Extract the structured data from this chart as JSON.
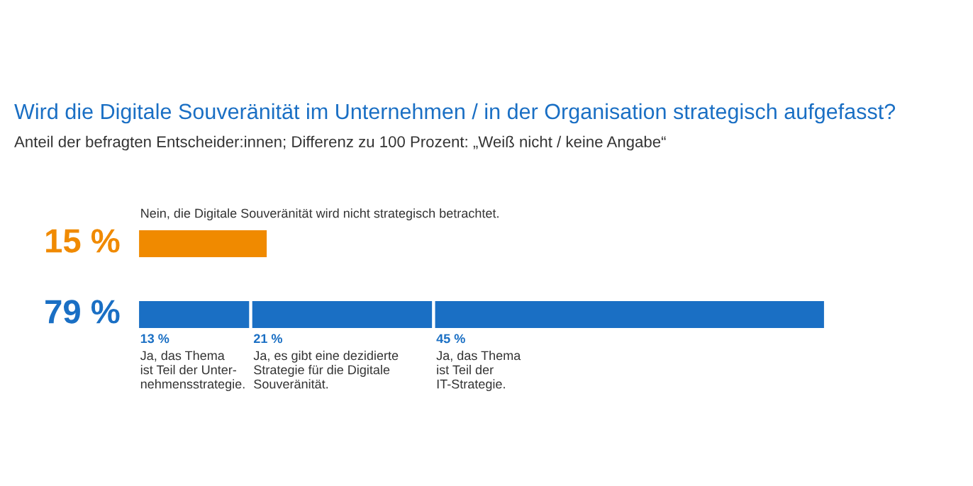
{
  "chart_data": {
    "type": "bar",
    "orientation": "horizontal",
    "stacked": true,
    "title": "Wird die Digitale Souveränität im Unternehmen / in der Organisation strategisch aufgefasst?",
    "subtitle": "Anteil der befragten Entscheider:innen; Differenz zu 100 Prozent: „Weiß nicht / keine Angabe“",
    "categories": [
      null,
      null
    ],
    "totals": [
      null,
      "79 %"
    ],
    "series": [
      {
        "name": "Nein, die Digitale Souveränität wird nicht strategisch betrachtet.",
        "color": "#f08a00",
        "values": [
          15,
          null
        ],
        "value_labels": [
          "15 %",
          null
        ]
      },
      {
        "name": "Ja, das Thema\nist Teil der Unter-\nnehmensstrategie.",
        "color": "#1a6fc4",
        "values": [
          null,
          13
        ],
        "value_labels": [
          null,
          "13 %"
        ]
      },
      {
        "name": "Ja, es gibt eine dezidierte\nStrategie für die Digitale\nSouveränität.",
        "color": "#1a6fc4",
        "values": [
          null,
          21
        ],
        "value_labels": [
          null,
          "21 %"
        ]
      },
      {
        "name": "Ja, das Thema\nist Teil der\nIT-Strategie.",
        "color": "#1a6fc4",
        "values": [
          null,
          45
        ],
        "value_labels": [
          null,
          "45 %"
        ]
      }
    ],
    "legend": false
  }
}
